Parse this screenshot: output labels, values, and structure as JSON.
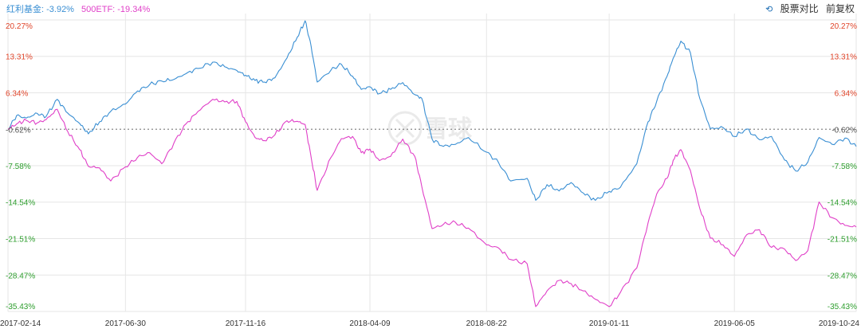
{
  "legend": {
    "series_1": "红利基金: -3.92%",
    "series_2": "500ETF: -19.34%"
  },
  "controls": {
    "back_icon": "back-icon",
    "compare_label": "股票对比",
    "adjust_label": "前复权"
  },
  "watermark_icon": "xueqiu-logo-icon",
  "watermark_text": "雪球",
  "colors": {
    "series_1": "#3a8fd3",
    "series_2": "#e040c8",
    "positive": "#e0452a",
    "negative": "#2e9e2e",
    "zero": "#555555",
    "grid": "#e6e6e6",
    "baseline": "#888888"
  },
  "chart_data": {
    "type": "line",
    "title": "",
    "xlabel": "",
    "ylabel": "",
    "ylim": [
      -35.43,
      20.27
    ],
    "y_ticks": [
      20.27,
      13.31,
      6.34,
      -0.62,
      -7.58,
      -14.54,
      -21.51,
      -28.47,
      -35.43
    ],
    "y_tick_labels": [
      "20.27%",
      "13.31%",
      "6.34%",
      "-0.62%",
      "-7.58%",
      "-14.54%",
      "-21.51%",
      "-28.47%",
      "-35.43%"
    ],
    "x_range": [
      "2017-02-14",
      "2019-10-24"
    ],
    "x_tick_labels": [
      "2017-02-14",
      "2017-06-30",
      "2017-11-16",
      "2018-04-09",
      "2018-08-22",
      "2019-01-11",
      "2019-06-05",
      "2019-10-24"
    ],
    "baseline": -0.62,
    "grid": true,
    "legend_position": "top-left",
    "series": [
      {
        "name": "红利基金",
        "color": "#3a8fd3",
        "points": [
          [
            "2017-02-14",
            -0.6
          ],
          [
            "2017-02-24",
            2.0
          ],
          [
            "2017-03-07",
            1.5
          ],
          [
            "2017-03-20",
            2.4
          ],
          [
            "2017-03-30",
            1.8
          ],
          [
            "2017-04-12",
            5.1
          ],
          [
            "2017-04-24",
            2.5
          ],
          [
            "2017-05-08",
            0.5
          ],
          [
            "2017-05-18",
            -1.5
          ],
          [
            "2017-05-31",
            0.8
          ],
          [
            "2017-06-13",
            2.8
          ],
          [
            "2017-06-30",
            4.2
          ],
          [
            "2017-07-14",
            6.7
          ],
          [
            "2017-07-28",
            7.9
          ],
          [
            "2017-08-11",
            8.6
          ],
          [
            "2017-08-25",
            8.9
          ],
          [
            "2017-09-08",
            10.0
          ],
          [
            "2017-09-22",
            11.0
          ],
          [
            "2017-10-09",
            12.2
          ],
          [
            "2017-10-23",
            11.3
          ],
          [
            "2017-11-06",
            10.6
          ],
          [
            "2017-11-16",
            9.7
          ],
          [
            "2017-11-27",
            8.7
          ],
          [
            "2017-12-08",
            8.4
          ],
          [
            "2017-12-20",
            9.2
          ],
          [
            "2018-01-03",
            13.0
          ],
          [
            "2018-01-15",
            17.0
          ],
          [
            "2018-01-24",
            20.1
          ],
          [
            "2018-01-31",
            15.2
          ],
          [
            "2018-02-07",
            8.4
          ],
          [
            "2018-02-23",
            10.7
          ],
          [
            "2018-03-07",
            11.8
          ],
          [
            "2018-03-20",
            9.5
          ],
          [
            "2018-03-30",
            7.0
          ],
          [
            "2018-04-09",
            7.5
          ],
          [
            "2018-04-20",
            6.2
          ],
          [
            "2018-05-03",
            7.0
          ],
          [
            "2018-05-17",
            8.3
          ],
          [
            "2018-05-31",
            6.0
          ],
          [
            "2018-06-08",
            5.3
          ],
          [
            "2018-06-20",
            -2.5
          ],
          [
            "2018-07-03",
            -3.9
          ],
          [
            "2018-07-17",
            -3.5
          ],
          [
            "2018-08-01",
            -2.2
          ],
          [
            "2018-08-22",
            -5.0
          ],
          [
            "2018-09-05",
            -7.0
          ],
          [
            "2018-09-19",
            -10.5
          ],
          [
            "2018-10-08",
            -10.0
          ],
          [
            "2018-10-18",
            -14.2
          ],
          [
            "2018-10-31",
            -11.2
          ],
          [
            "2018-11-14",
            -12.4
          ],
          [
            "2018-11-28",
            -10.8
          ],
          [
            "2018-12-12",
            -12.8
          ],
          [
            "2018-12-26",
            -14.2
          ],
          [
            "2019-01-11",
            -12.5
          ],
          [
            "2019-01-24",
            -11.7
          ],
          [
            "2019-02-12",
            -7.2
          ],
          [
            "2019-02-25",
            0.8
          ],
          [
            "2019-03-07",
            4.7
          ],
          [
            "2019-03-19",
            9.5
          ],
          [
            "2019-03-26",
            12.9
          ],
          [
            "2019-04-04",
            16.2
          ],
          [
            "2019-04-15",
            14.0
          ],
          [
            "2019-04-26",
            5.2
          ],
          [
            "2019-05-08",
            -0.5
          ],
          [
            "2019-05-23",
            -0.3
          ],
          [
            "2019-06-05",
            -2.0
          ],
          [
            "2019-06-19",
            -0.6
          ],
          [
            "2019-07-04",
            -2.6
          ],
          [
            "2019-07-18",
            -2.0
          ],
          [
            "2019-08-02",
            -6.5
          ],
          [
            "2019-08-15",
            -8.6
          ],
          [
            "2019-08-29",
            -6.9
          ],
          [
            "2019-09-11",
            -2.2
          ],
          [
            "2019-09-26",
            -3.5
          ],
          [
            "2019-10-11",
            -2.3
          ],
          [
            "2019-10-24",
            -3.9
          ]
        ]
      },
      {
        "name": "500ETF",
        "color": "#e040c8",
        "points": [
          [
            "2017-02-14",
            -0.6
          ],
          [
            "2017-02-24",
            0.4
          ],
          [
            "2017-03-07",
            1.1
          ],
          [
            "2017-03-20",
            0.6
          ],
          [
            "2017-03-30",
            1.2
          ],
          [
            "2017-04-12",
            3.2
          ],
          [
            "2017-04-24",
            -1.0
          ],
          [
            "2017-05-08",
            -4.5
          ],
          [
            "2017-05-18",
            -7.7
          ],
          [
            "2017-05-31",
            -8.0
          ],
          [
            "2017-06-13",
            -10.5
          ],
          [
            "2017-06-30",
            -7.8
          ],
          [
            "2017-07-14",
            -6.0
          ],
          [
            "2017-07-28",
            -5.1
          ],
          [
            "2017-08-11",
            -7.2
          ],
          [
            "2017-08-25",
            -3.3
          ],
          [
            "2017-09-08",
            0.4
          ],
          [
            "2017-09-22",
            2.8
          ],
          [
            "2017-10-09",
            5.1
          ],
          [
            "2017-10-23",
            4.6
          ],
          [
            "2017-11-06",
            4.7
          ],
          [
            "2017-11-16",
            0.8
          ],
          [
            "2017-11-27",
            -2.2
          ],
          [
            "2017-12-08",
            -2.8
          ],
          [
            "2017-12-20",
            -1.7
          ],
          [
            "2018-01-03",
            1.0
          ],
          [
            "2018-01-15",
            0.9
          ],
          [
            "2018-01-24",
            0.3
          ],
          [
            "2018-01-31",
            -6.0
          ],
          [
            "2018-02-07",
            -12.3
          ],
          [
            "2018-02-23",
            -6.0
          ],
          [
            "2018-03-07",
            -2.4
          ],
          [
            "2018-03-20",
            -2.0
          ],
          [
            "2018-03-30",
            -5.1
          ],
          [
            "2018-04-09",
            -4.4
          ],
          [
            "2018-04-20",
            -6.6
          ],
          [
            "2018-05-03",
            -5.8
          ],
          [
            "2018-05-17",
            -2.5
          ],
          [
            "2018-05-31",
            -5.8
          ],
          [
            "2018-06-08",
            -11.5
          ],
          [
            "2018-06-20",
            -19.6
          ],
          [
            "2018-07-03",
            -18.8
          ],
          [
            "2018-07-17",
            -18.4
          ],
          [
            "2018-08-01",
            -19.5
          ],
          [
            "2018-08-22",
            -22.7
          ],
          [
            "2018-09-05",
            -23.3
          ],
          [
            "2018-09-19",
            -25.5
          ],
          [
            "2018-10-08",
            -26.3
          ],
          [
            "2018-10-18",
            -34.5
          ],
          [
            "2018-10-31",
            -31.5
          ],
          [
            "2018-11-14",
            -29.5
          ],
          [
            "2018-11-28",
            -30.1
          ],
          [
            "2018-12-12",
            -31.5
          ],
          [
            "2018-12-26",
            -33.1
          ],
          [
            "2019-01-11",
            -34.5
          ],
          [
            "2019-01-24",
            -31.8
          ],
          [
            "2019-02-12",
            -27.1
          ],
          [
            "2019-02-25",
            -18.5
          ],
          [
            "2019-03-07",
            -13.0
          ],
          [
            "2019-03-19",
            -10.0
          ],
          [
            "2019-03-26",
            -6.6
          ],
          [
            "2019-04-04",
            -4.5
          ],
          [
            "2019-04-15",
            -8.5
          ],
          [
            "2019-04-26",
            -15.8
          ],
          [
            "2019-05-08",
            -21.4
          ],
          [
            "2019-05-23",
            -22.7
          ],
          [
            "2019-06-05",
            -24.9
          ],
          [
            "2019-06-19",
            -20.8
          ],
          [
            "2019-07-04",
            -19.8
          ],
          [
            "2019-07-18",
            -23.2
          ],
          [
            "2019-08-02",
            -23.5
          ],
          [
            "2019-08-15",
            -25.7
          ],
          [
            "2019-08-29",
            -23.8
          ],
          [
            "2019-09-11",
            -14.5
          ],
          [
            "2019-09-26",
            -17.5
          ],
          [
            "2019-10-11",
            -19.0
          ],
          [
            "2019-10-24",
            -19.3
          ]
        ]
      }
    ]
  }
}
